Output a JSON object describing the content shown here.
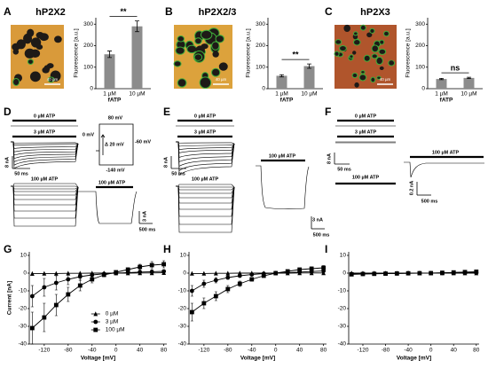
{
  "panel_labels": [
    "A",
    "B",
    "C",
    "D",
    "E",
    "F",
    "G",
    "H",
    "I"
  ],
  "panel_titles": [
    "hP2X2",
    "hP2X2/3",
    "hP2X3"
  ],
  "micrograph_scale": [
    "40 µm",
    "40 µm",
    "40 µm"
  ],
  "traces": {
    "D": [
      "0 µM ATP",
      "3 µM ATP",
      "8 nA",
      "50 ms",
      "100 µM ATP",
      "3 nA",
      "500 ms",
      "80 mV",
      "0 mV",
      "-60 mV",
      "-140 mV",
      "Δ 20 mV"
    ],
    "E": [
      "0 µM ATP",
      "3 µM ATP",
      "8 nA",
      "50 ms",
      "100 µM ATP",
      "100 µM ATP",
      "3 nA",
      "500 ms"
    ],
    "F": [
      "0 µM ATP",
      "3 µM ATP",
      "8 nA",
      "50 ms",
      "100 µM ATP",
      "100 µM ATP",
      "0.2 nA",
      "500 ms"
    ]
  },
  "chart_data": [
    {
      "type": "bar",
      "categories": [
        "1 µM",
        "10 µM"
      ],
      "values": [
        160,
        290
      ],
      "errors": [
        15,
        25
      ],
      "color": "#8c8c8c",
      "xlabel": "fATP",
      "ylabel": "Fluorescence [a.u.]",
      "ylim": [
        0,
        330
      ],
      "yticks": [
        0,
        100,
        200,
        300
      ],
      "annotation": "**"
    },
    {
      "type": "bar",
      "categories": [
        "1 µM",
        "10 µM"
      ],
      "values": [
        60,
        105
      ],
      "errors": [
        5,
        10
      ],
      "color": "#8c8c8c",
      "xlabel": "fATP",
      "ylabel": "Fluorescence [a.u.]",
      "ylim": [
        0,
        330
      ],
      "yticks": [
        0,
        100,
        200,
        300
      ],
      "annotation": "**"
    },
    {
      "type": "bar",
      "categories": [
        "1 µM",
        "10 µM"
      ],
      "values": [
        45,
        50
      ],
      "errors": [
        3,
        3
      ],
      "color": "#8c8c8c",
      "xlabel": "fATP",
      "ylabel": "Fluorescence [a.u.]",
      "ylim": [
        0,
        330
      ],
      "yticks": [
        0,
        100,
        200,
        300
      ],
      "annotation": "ns"
    },
    {
      "type": "line",
      "xlabel": "Voltage [mV]",
      "ylabel": "Current [nA]",
      "legend": "lower right",
      "x": [
        -140,
        -120,
        -100,
        -80,
        -60,
        -40,
        -20,
        0,
        20,
        40,
        60,
        80
      ],
      "xlim": [
        -145,
        85
      ],
      "xticks": [
        -120,
        -80,
        -40,
        0,
        40,
        80
      ],
      "ylim": [
        -40,
        12
      ],
      "yticks": [
        -40,
        -30,
        -20,
        -10,
        0,
        10
      ],
      "series": [
        {
          "name": "0 µM",
          "marker": "triangle",
          "color": "#000000",
          "values": [
            -0.3,
            -0.2,
            -0.2,
            -0.1,
            -0.1,
            0,
            0,
            0,
            0,
            0.1,
            0.1,
            0.2
          ]
        },
        {
          "name": "3 µM",
          "marker": "circle",
          "color": "#000000",
          "values": [
            -13,
            -8,
            -5.5,
            -3.5,
            -2,
            -1,
            -0.4,
            0,
            0.3,
            0.6,
            0.8,
            1
          ],
          "errors": [
            6,
            5,
            4,
            3,
            2,
            1,
            0.5,
            0.3,
            0.3,
            0.4,
            0.5,
            0.6
          ]
        },
        {
          "name": "100 µM",
          "marker": "square",
          "color": "#000000",
          "values": [
            -31,
            -25,
            -18,
            -12,
            -7,
            -3.5,
            -1,
            0.5,
            2,
            3.5,
            4.5,
            5
          ],
          "errors": [
            9,
            8,
            6,
            4,
            3,
            2,
            1,
            0.5,
            1,
            1.5,
            2,
            2
          ]
        }
      ]
    },
    {
      "type": "line",
      "xlabel": "Voltage [mV]",
      "x": [
        -140,
        -120,
        -100,
        -80,
        -60,
        -40,
        -20,
        0,
        20,
        40,
        60,
        80
      ],
      "xlim": [
        -145,
        85
      ],
      "xticks": [
        -120,
        -80,
        -40,
        0,
        40,
        80
      ],
      "ylim": [
        -40,
        12
      ],
      "yticks": [
        -40,
        -30,
        -20,
        -10,
        0,
        10
      ],
      "series": [
        {
          "marker": "triangle",
          "color": "#000000",
          "values": [
            -0.2,
            -0.2,
            -0.1,
            -0.1,
            0,
            0,
            0,
            0,
            0,
            0.1,
            0.1,
            0.1
          ]
        },
        {
          "marker": "circle",
          "color": "#000000",
          "values": [
            -10,
            -6,
            -4,
            -2.5,
            -1.5,
            -0.8,
            -0.3,
            0,
            0.3,
            0.6,
            0.9,
            1.2
          ],
          "errors": [
            3,
            2,
            1.5,
            1,
            0.8,
            0.5,
            0.3,
            0.2,
            0.2,
            0.3,
            0.3,
            0.4
          ]
        },
        {
          "marker": "square",
          "color": "#000000",
          "values": [
            -22,
            -17,
            -13,
            -9,
            -6,
            -3.5,
            -1.5,
            0,
            1,
            2,
            2.5,
            3
          ],
          "errors": [
            5,
            3,
            2.5,
            2,
            1.5,
            1,
            0.6,
            0.3,
            0.5,
            0.8,
            1,
            1.2
          ]
        }
      ]
    },
    {
      "type": "line",
      "xlabel": "Voltage [mV]",
      "x": [
        -140,
        -120,
        -100,
        -80,
        -60,
        -40,
        -20,
        0,
        20,
        40,
        60,
        80
      ],
      "xlim": [
        -145,
        85
      ],
      "xticks": [
        -120,
        -80,
        -40,
        0,
        40,
        80
      ],
      "ylim": [
        -40,
        12
      ],
      "yticks": [
        -40,
        -30,
        -20,
        -10,
        0,
        10
      ],
      "series": [
        {
          "marker": "triangle",
          "color": "#000000",
          "values": [
            0,
            0,
            0,
            0,
            0,
            0,
            0,
            0,
            0,
            0,
            0,
            0
          ]
        },
        {
          "marker": "circle",
          "color": "#000000",
          "values": [
            -0.5,
            -0.4,
            -0.3,
            -0.2,
            -0.2,
            -0.1,
            0,
            0,
            0.1,
            0.2,
            0.3,
            0.4
          ]
        },
        {
          "marker": "square",
          "color": "#000000",
          "values": [
            -0.7,
            -0.5,
            -0.4,
            -0.3,
            -0.2,
            -0.1,
            -0.05,
            0,
            0.2,
            0.4,
            0.6,
            0.8
          ]
        }
      ]
    }
  ]
}
